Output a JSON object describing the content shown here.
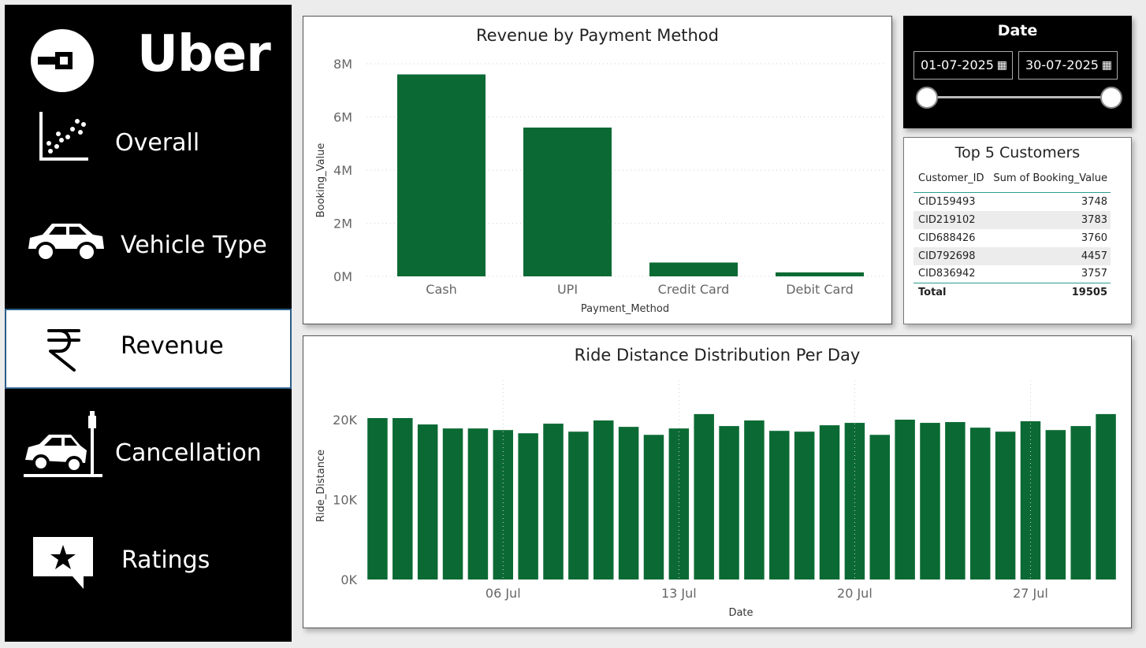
{
  "brand": {
    "name": "Uber"
  },
  "nav": {
    "items": [
      {
        "label": "Overall",
        "icon": "scatter-chart-icon"
      },
      {
        "label": "Vehicle Type",
        "icon": "car-icon"
      },
      {
        "label": "Revenue",
        "icon": "rupee-icon"
      },
      {
        "label": "Cancellation",
        "icon": "car-crash-icon"
      },
      {
        "label": "Ratings",
        "icon": "star-speech-bubble-icon"
      }
    ],
    "active": "Revenue"
  },
  "date_slicer": {
    "title": "Date",
    "start": "01-07-2025",
    "end": "30-07-2025"
  },
  "top_customers": {
    "title": "Top 5 Customers",
    "columns": [
      "Customer_ID",
      "Sum of Booking_Value"
    ],
    "rows": [
      {
        "id": "CID159493",
        "value": "3748"
      },
      {
        "id": "CID219102",
        "value": "3783"
      },
      {
        "id": "CID688426",
        "value": "3760"
      },
      {
        "id": "CID792698",
        "value": "4457"
      },
      {
        "id": "CID836942",
        "value": "3757"
      }
    ],
    "total_label": "Total",
    "total_value": "19505"
  },
  "colors": {
    "bar": "#0b6a34",
    "sidebar": "#000000",
    "accent_border": "#2b5d8a"
  },
  "chart_data": [
    {
      "type": "bar",
      "title": "Revenue by Payment Method",
      "xlabel": "Payment_Method",
      "ylabel": "Booking_Value",
      "categories": [
        "Cash",
        "UPI",
        "Credit Card",
        "Debit Card"
      ],
      "values": [
        7600000,
        5600000,
        520000,
        150000
      ],
      "ylim": [
        0,
        8000000
      ],
      "yticks": [
        "0M",
        "2M",
        "4M",
        "6M",
        "8M"
      ],
      "grid": true
    },
    {
      "type": "bar",
      "title": "Ride Distance Distribution Per Day",
      "xlabel": "Date",
      "ylabel": "Ride_Distance",
      "categories": [
        "01 Jul",
        "02 Jul",
        "03 Jul",
        "04 Jul",
        "05 Jul",
        "06 Jul",
        "07 Jul",
        "08 Jul",
        "09 Jul",
        "10 Jul",
        "11 Jul",
        "12 Jul",
        "13 Jul",
        "14 Jul",
        "15 Jul",
        "16 Jul",
        "17 Jul",
        "18 Jul",
        "19 Jul",
        "20 Jul",
        "21 Jul",
        "22 Jul",
        "23 Jul",
        "24 Jul",
        "25 Jul",
        "26 Jul",
        "27 Jul",
        "28 Jul",
        "29 Jul",
        "30 Jul"
      ],
      "values": [
        20200,
        20200,
        19400,
        18900,
        18900,
        18700,
        18300,
        19500,
        18500,
        19900,
        19100,
        18100,
        18900,
        20700,
        19200,
        19900,
        18600,
        18500,
        19300,
        19600,
        18100,
        20000,
        19600,
        19700,
        19000,
        18500,
        19800,
        18700,
        19200,
        20700
      ],
      "ylim": [
        0,
        20000
      ],
      "yticks": [
        "0K",
        "10K",
        "20K"
      ],
      "xticks": [
        "06 Jul",
        "13 Jul",
        "20 Jul",
        "27 Jul"
      ],
      "grid": true
    }
  ]
}
